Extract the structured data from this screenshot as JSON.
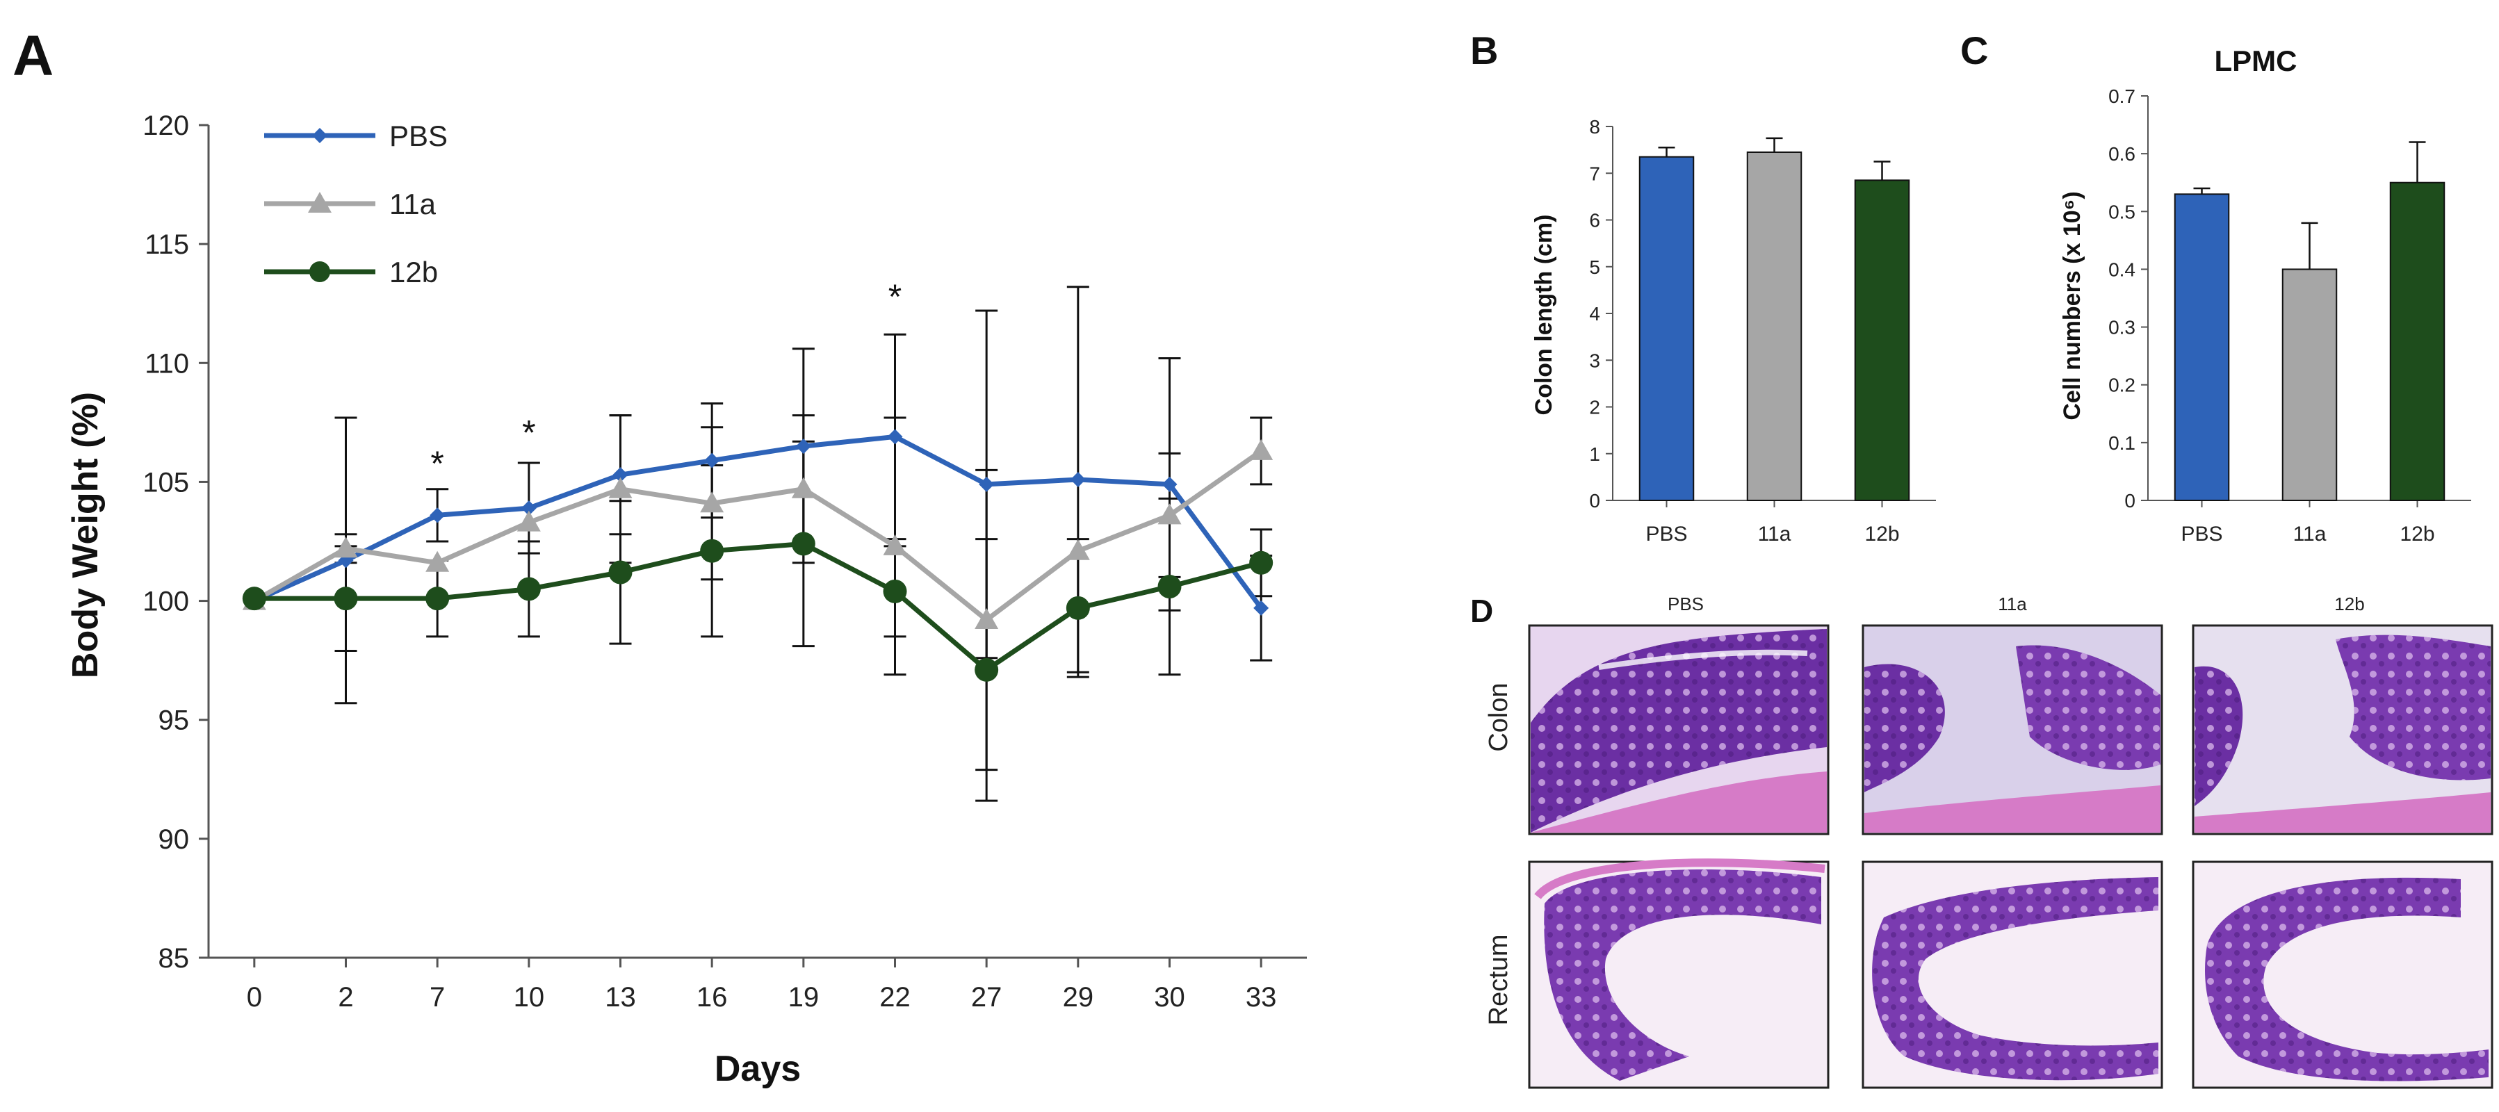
{
  "panels": {
    "a": {
      "letter": "A"
    },
    "b": {
      "letter": "B"
    },
    "c": {
      "letter": "C"
    },
    "d": {
      "letter": "D"
    }
  },
  "colors": {
    "pbs": "#2e63b8",
    "g11a": "#a6a6a6",
    "g12b": "#1e4d1c",
    "text": "#111111",
    "axis": "#555555"
  },
  "histology": {
    "columns": [
      "PBS",
      "11a",
      "12b"
    ],
    "rows": [
      "Colon",
      "Rectum"
    ]
  },
  "chart_data": [
    {
      "type": "line",
      "panel": "A",
      "xlabel": "Days",
      "ylabel": "Body Weight (%)",
      "categories": [
        "0",
        "2",
        "7",
        "10",
        "13",
        "16",
        "19",
        "22",
        "27",
        "29",
        "30",
        "33"
      ],
      "ylim": [
        85,
        120
      ],
      "yticks": [
        85,
        90,
        95,
        100,
        105,
        110,
        115,
        120
      ],
      "legend_position": "top-left",
      "series": [
        {
          "name": "PBS",
          "marker": "diamond",
          "values": [
            100,
            101.7,
            103.6,
            103.9,
            105.3,
            105.9,
            106.5,
            106.9,
            104.9,
            105.1,
            104.9,
            99.7
          ],
          "errors": [
            0,
            6.0,
            1.1,
            1.9,
            2.5,
            2.4,
            4.1,
            4.3,
            7.3,
            8.1,
            5.3,
            2.2
          ]
        },
        {
          "name": "11a",
          "marker": "triangle",
          "values": [
            100,
            102.2,
            101.6,
            103.3,
            104.7,
            104.1,
            104.7,
            102.3,
            99.2,
            102.1,
            103.6,
            106.3
          ],
          "errors": [
            0,
            0.6,
            0,
            0,
            3.1,
            3.2,
            3.1,
            5.4,
            6.3,
            0,
            2.6,
            1.4
          ]
        },
        {
          "name": "12b",
          "marker": "circle",
          "values": [
            100.1,
            100.1,
            100.1,
            100.5,
            101.2,
            102.1,
            102.4,
            100.4,
            97.1,
            99.7,
            100.6,
            101.6
          ],
          "errors": [
            0,
            2.2,
            1.6,
            2.0,
            3.0,
            3.6,
            4.3,
            1.9,
            5.5,
            2.9,
            3.7,
            1.4
          ]
        }
      ],
      "annotations": [
        {
          "category": "7",
          "text": "*",
          "y": 106.1
        },
        {
          "category": "10",
          "text": "*",
          "y": 107.4
        },
        {
          "category": "22",
          "text": "*",
          "y": 113.1
        }
      ]
    },
    {
      "type": "bar",
      "panel": "B",
      "title": "",
      "ylabel": "Colon length (cm)",
      "categories": [
        "PBS",
        "11a",
        "12b"
      ],
      "values": [
        7.35,
        7.45,
        6.85
      ],
      "errors": [
        0.2,
        0.3,
        0.4
      ],
      "ylim": [
        0,
        8
      ],
      "yticks": [
        "0",
        "1",
        "2",
        "3",
        "4",
        "5",
        "6",
        "7",
        "8"
      ]
    },
    {
      "type": "bar",
      "panel": "C",
      "title": "LPMC",
      "ylabel": "Cell numbers (x 10⁶)",
      "categories": [
        "PBS",
        "11a",
        "12b"
      ],
      "values": [
        0.53,
        0.4,
        0.55
      ],
      "errors": [
        0.01,
        0.08,
        0.07
      ],
      "ylim": [
        0,
        0.7
      ],
      "yticks": [
        "0",
        "0.1",
        "0.2",
        "0.3",
        "0.4",
        "0.5",
        "0.6",
        "0.7"
      ]
    }
  ]
}
